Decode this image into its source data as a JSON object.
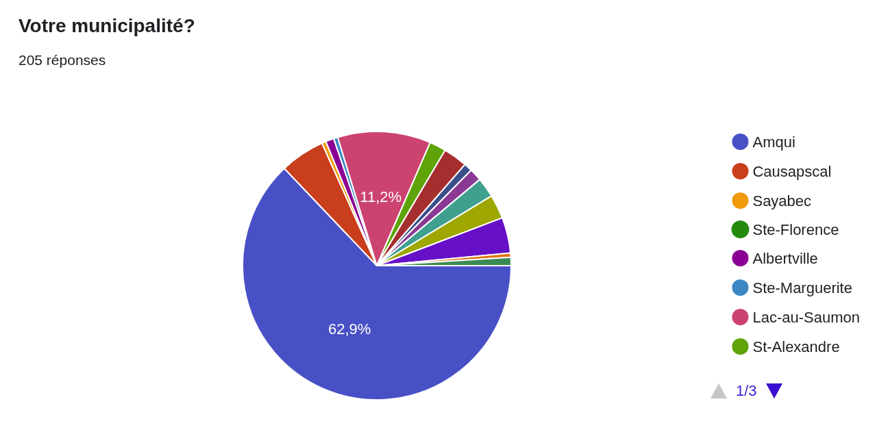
{
  "chart_data": {
    "type": "pie",
    "title": "Votre municipalité?",
    "subtitle": "205 réponses",
    "categories": [
      "Amqui",
      "Causapscal",
      "Sayabec",
      "Ste-Florence",
      "Albertville",
      "Ste-Marguerite",
      "Lac-au-Saumon",
      "St-Alexandre",
      null,
      null,
      null,
      null,
      null,
      null,
      null,
      null
    ],
    "values": [
      62.9,
      5.4,
      0.5,
      0,
      1.0,
      0.5,
      11.2,
      2.0,
      2.9,
      1.0,
      1.5,
      2.4,
      2.9,
      4.3,
      0.5,
      1.0
    ],
    "colors": [
      "#4850c6",
      "#c93e1c",
      "#f09a09",
      "#24890f",
      "#8b0094",
      "#3d87c3",
      "#cc4370",
      "#5ea307",
      "#a52e2e",
      "#3a4f8a",
      "#8a3a94",
      "#40a08f",
      "#9ea600",
      "#6610c8",
      "#e0720e",
      "#3a8a54"
    ],
    "value_labels": [
      "62,9%",
      null,
      null,
      null,
      null,
      null,
      "11,2%",
      null,
      null,
      null,
      null,
      null,
      null,
      null,
      null,
      null
    ],
    "legend": "right",
    "annotations": [
      "1/3"
    ]
  }
}
